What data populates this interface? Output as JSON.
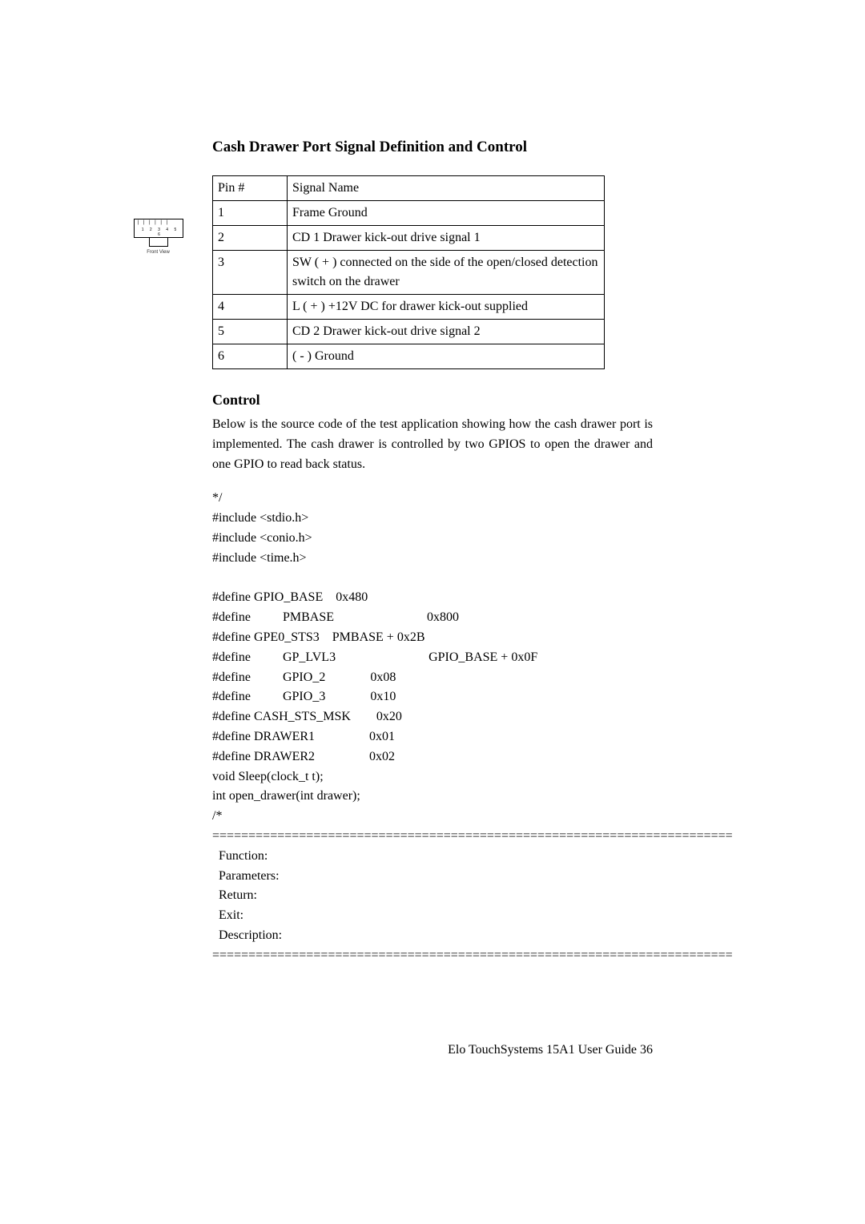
{
  "title": "Cash Drawer Port Signal Definition and Control",
  "figure_label": "Front View",
  "pin_numbers": "1 2 3 4 5 6",
  "table": {
    "header": {
      "col1": "Pin #",
      "col2": "Signal Name"
    },
    "rows": [
      {
        "pin": "1",
        "signal": "Frame Ground"
      },
      {
        "pin": "2",
        "signal": "CD 1 Drawer kick-out drive signal 1"
      },
      {
        "pin": "3",
        "signal": "SW ( + ) connected on the side of the open/closed detection switch on the drawer"
      },
      {
        "pin": "4",
        "signal": "L ( + ) +12V DC for drawer kick-out supplied"
      },
      {
        "pin": "5",
        "signal": "CD 2 Drawer kick-out drive signal 2"
      },
      {
        "pin": "6",
        "signal": "( - ) Ground"
      }
    ]
  },
  "control_heading": "Control",
  "control_para": "Below is the source code of the test application showing how the cash drawer port is implemented. The cash drawer is controlled by two GPIOS to open the drawer and one GPIO to read back status.",
  "code": {
    "l1": "*/",
    "l2": "#include <stdio.h>",
    "l3": "#include <conio.h>",
    "l4": "#include <time.h>",
    "l5": "",
    "l6": "#define GPIO_BASE    0x480",
    "l7": "#define          PMBASE                             0x800",
    "l8": "#define GPE0_STS3    PMBASE + 0x2B",
    "l9": "#define          GP_LVL3                             GPIO_BASE + 0x0F",
    "l10": "#define          GPIO_2              0x08",
    "l11": "#define          GPIO_3              0x10",
    "l12": "#define CASH_STS_MSK        0x20",
    "l13": "#define DRAWER1                 0x01",
    "l14": "#define DRAWER2                 0x02",
    "l15": "void Sleep(clock_t t);",
    "l16": "int open_drawer(int drawer);",
    "l17": "/*",
    "divider": "========================================================================",
    "l18": "  Function:",
    "l19": "  Parameters:",
    "l20": "  Return:",
    "l21": "  Exit:",
    "l22": "  Description:"
  },
  "footer": "Elo TouchSystems  15A1  User Guide    36"
}
